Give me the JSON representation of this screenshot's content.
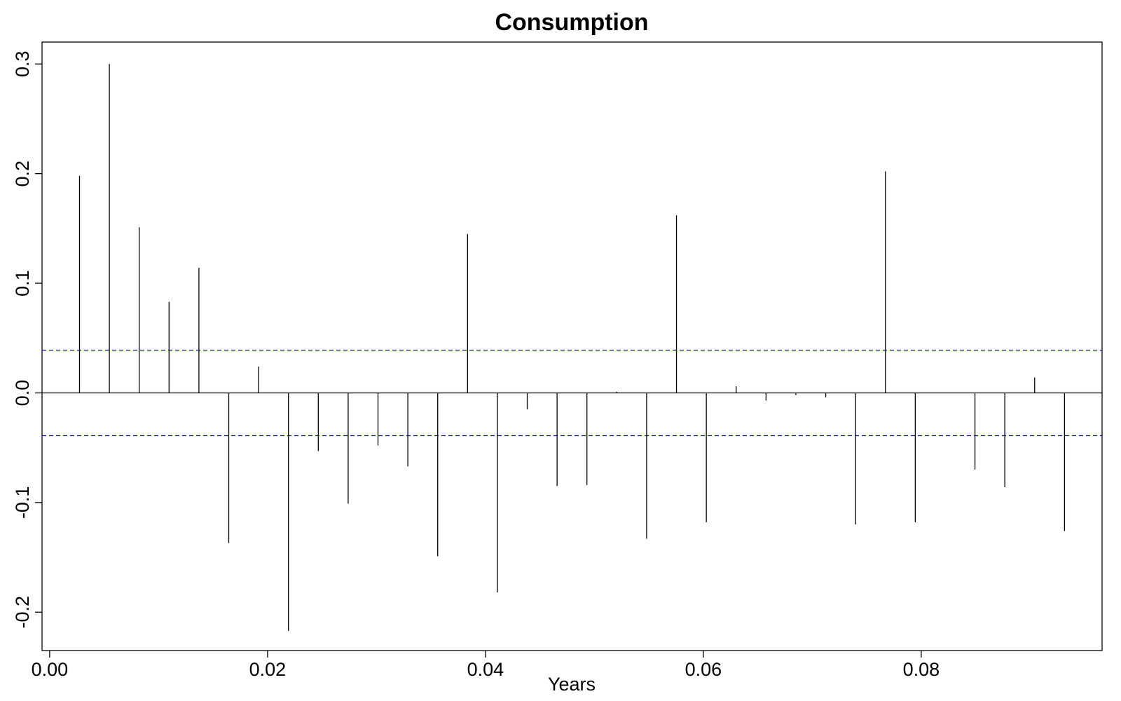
{
  "chart_data": {
    "type": "bar",
    "subtype": "acf-spikes",
    "title": "Consumption",
    "xlabel": "Years",
    "ylabel": "",
    "xlim": [
      -0.0007,
      0.0966
    ],
    "ylim": [
      -0.235,
      0.32
    ],
    "x_ticks": [
      0.0,
      0.02,
      0.04,
      0.06,
      0.08
    ],
    "x_tick_labels": [
      "0.00",
      "0.02",
      "0.04",
      "0.06",
      "0.08"
    ],
    "y_ticks": [
      -0.2,
      -0.1,
      0.0,
      0.1,
      0.2,
      0.3
    ],
    "y_tick_labels": [
      "-0.2",
      "-0.1",
      "0.0",
      "0.1",
      "0.2",
      "0.3"
    ],
    "lag_step": 0.002739726,
    "values": [
      0.198,
      0.3,
      0.151,
      0.083,
      0.114,
      -0.137,
      0.024,
      -0.217,
      -0.053,
      -0.101,
      -0.048,
      -0.067,
      -0.149,
      0.145,
      -0.182,
      -0.015,
      -0.085,
      -0.084,
      0.001,
      -0.133,
      0.162,
      -0.118,
      0.006,
      -0.007,
      -0.002,
      -0.004,
      -0.12,
      0.202,
      -0.118,
      0.0,
      -0.07,
      -0.086,
      0.014,
      -0.126
    ],
    "conf_upper": 0.039,
    "conf_lower": -0.039,
    "conf_color": "#0000ee",
    "spike_color": "#000000"
  }
}
